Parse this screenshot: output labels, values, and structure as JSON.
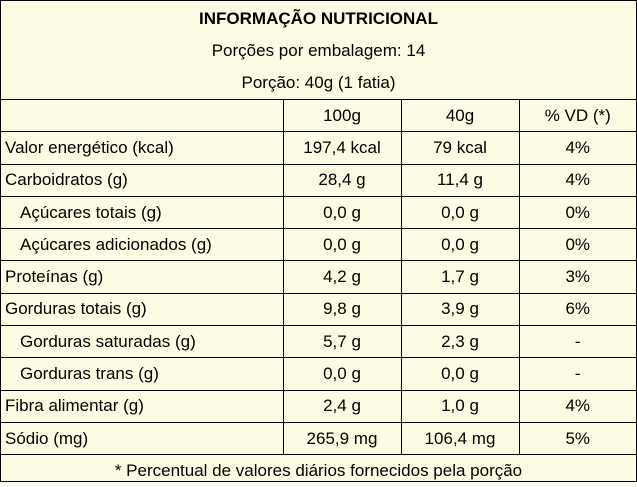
{
  "header": {
    "title": "INFORMAÇÃO NUTRICIONAL",
    "servings_per_package": "Porções por embalagem: 14",
    "portion": "Porção: 40g (1 fatia)"
  },
  "columns": [
    "",
    "100g",
    "40g",
    "% VD (*)"
  ],
  "rows": [
    {
      "label": "Valor energético (kcal)",
      "per100": "197,4 kcal",
      "per40": "79 kcal",
      "vd": "4%",
      "sub": false
    },
    {
      "label": "Carboidratos (g)",
      "per100": "28,4 g",
      "per40": "11,4 g",
      "vd": "4%",
      "sub": false
    },
    {
      "label": "Açúcares totais (g)",
      "per100": "0,0 g",
      "per40": "0,0 g",
      "vd": "0%",
      "sub": true
    },
    {
      "label": "Açúcares adicionados (g)",
      "per100": "0,0 g",
      "per40": "0,0 g",
      "vd": "0%",
      "sub": true
    },
    {
      "label": "Proteínas (g)",
      "per100": "4,2 g",
      "per40": "1,7 g",
      "vd": "3%",
      "sub": false
    },
    {
      "label": "Gorduras totais (g)",
      "per100": "9,8 g",
      "per40": "3,9 g",
      "vd": "6%",
      "sub": false
    },
    {
      "label": "Gorduras saturadas (g)",
      "per100": "5,7 g",
      "per40": "2,3 g",
      "vd": "-",
      "sub": true
    },
    {
      "label": "Gorduras trans (g)",
      "per100": "0,0 g",
      "per40": "0,0 g",
      "vd": "-",
      "sub": true
    },
    {
      "label": "Fibra alimentar (g)",
      "per100": "2,4 g",
      "per40": "1,0 g",
      "vd": "4%",
      "sub": false
    },
    {
      "label": "Sódio (mg)",
      "per100": "265,9 mg",
      "per40": "106,4 mg",
      "vd": "5%",
      "sub": false
    }
  ],
  "footnote": "* Percentual de valores diários fornecidos pela porção",
  "colors": {
    "background": "#fdfbe3",
    "border": "#000000",
    "text": "#000000"
  }
}
